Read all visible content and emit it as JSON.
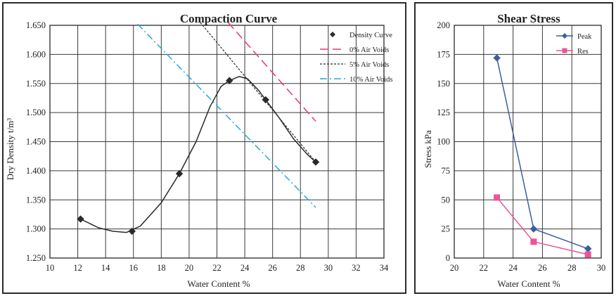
{
  "chart_data": [
    {
      "type": "line",
      "title": "Compaction Curve",
      "xlabel": "Water Content %",
      "ylabel": "Dry Density t/m³",
      "xlim": [
        10,
        34
      ],
      "ylim": [
        1.25,
        1.65
      ],
      "xticks": [
        "10",
        "12",
        "14",
        "16",
        "18",
        "20",
        "22",
        "24",
        "26",
        "28",
        "30",
        "32",
        "34"
      ],
      "yticks": [
        "1.250",
        "1.300",
        "1.350",
        "1.400",
        "1.450",
        "1.500",
        "1.550",
        "1.600",
        "1.650"
      ],
      "grid": true,
      "legend_position": "top-right",
      "series": [
        {
          "name": "Density Curve",
          "color": "#2a2a2a",
          "marker": "diamond",
          "points": [
            [
              12.2,
              1.317
            ],
            [
              15.9,
              1.296
            ],
            [
              19.3,
              1.395
            ],
            [
              22.9,
              1.555
            ],
            [
              25.5,
              1.522
            ],
            [
              29.1,
              1.415
            ]
          ],
          "curve": [
            [
              12.2,
              1.317
            ],
            [
              13.5,
              1.302
            ],
            [
              14.5,
              1.296
            ],
            [
              15.5,
              1.294
            ],
            [
              16.5,
              1.305
            ],
            [
              18.0,
              1.345
            ],
            [
              19.3,
              1.395
            ],
            [
              20.5,
              1.45
            ],
            [
              21.5,
              1.51
            ],
            [
              22.3,
              1.545
            ],
            [
              22.9,
              1.555
            ],
            [
              23.6,
              1.562
            ],
            [
              24.2,
              1.558
            ],
            [
              25.0,
              1.538
            ],
            [
              25.5,
              1.522
            ],
            [
              26.5,
              1.49
            ],
            [
              27.5,
              1.455
            ],
            [
              28.5,
              1.428
            ],
            [
              29.1,
              1.415
            ]
          ]
        },
        {
          "name": "0% Air Voids",
          "color": "#e8357a",
          "style": "dashed",
          "points": [
            [
              22.8,
              1.655
            ],
            [
              29.1,
              1.485
            ]
          ]
        },
        {
          "name": "5% Air Voids",
          "color": "#2a2a2a",
          "style": "dotted",
          "points": [
            [
              20.8,
              1.655
            ],
            [
              29.1,
              1.415
            ]
          ]
        },
        {
          "name": "10% Air Voids",
          "color": "#25a8e0",
          "style": "dashdot",
          "points": [
            [
              16.3,
              1.652
            ],
            [
              29.1,
              1.337
            ]
          ]
        }
      ]
    },
    {
      "type": "line",
      "title": "Shear Stress",
      "xlabel": "Water Content %",
      "ylabel": "Stress kPa",
      "xlim": [
        20,
        30
      ],
      "ylim": [
        0,
        200
      ],
      "xticks": [
        "20",
        "22",
        "24",
        "26",
        "28",
        "30"
      ],
      "yticks": [
        "0",
        "25",
        "50",
        "75",
        "100",
        "125",
        "150",
        "175",
        "200"
      ],
      "grid": true,
      "legend_position": "top-right",
      "series": [
        {
          "name": "Peak",
          "color": "#3a5f9e",
          "marker": "diamond",
          "points": [
            [
              22.9,
              172
            ],
            [
              25.4,
              25
            ],
            [
              29.1,
              8
            ]
          ]
        },
        {
          "name": "Res",
          "color": "#e8579a",
          "marker": "square",
          "points": [
            [
              22.9,
              52
            ],
            [
              25.4,
              14
            ],
            [
              29.1,
              3
            ]
          ]
        }
      ]
    }
  ]
}
